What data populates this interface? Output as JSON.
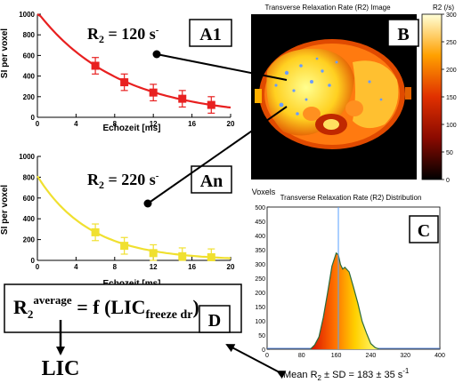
{
  "panel_a1": {
    "letter": "A1",
    "r2_label": "R",
    "r2_sub": "2",
    "r2_value": " = 120 s",
    "r2_sup": "-",
    "xlabel": "Echozeit [ms]",
    "ylabel": "SI per voxel",
    "x_ticks": [
      "0",
      "4",
      "8",
      "12",
      "16",
      "20"
    ],
    "y_ticks": [
      "0",
      "200",
      "400",
      "600",
      "800",
      "1000"
    ],
    "color": "#e82020"
  },
  "panel_an": {
    "letter": "An",
    "r2_label": "R",
    "r2_sub": "2",
    "r2_value": " = 220 s",
    "r2_sup": "-",
    "xlabel": "Echozeit [ms]",
    "ylabel": "SI per voxel",
    "x_ticks": [
      "0",
      "4",
      "8",
      "12",
      "16",
      "20"
    ],
    "y_ticks": [
      "0",
      "200",
      "400",
      "600",
      "800",
      "1000"
    ],
    "color": "#f0e030"
  },
  "panel_b": {
    "letter": "B",
    "title": "Transverse Relaxation Rate (R2) Image",
    "colorbar_title": "R2 (/s)",
    "colorbar_ticks": [
      "300",
      "250",
      "200",
      "150",
      "100",
      "50",
      "0"
    ]
  },
  "panel_c": {
    "letter": "C",
    "title": "Transverse Relaxation Rate (R2) Distribution",
    "ylabel": "Voxels",
    "y_ticks": [
      "0",
      "50",
      "100",
      "150",
      "200",
      "250",
      "300",
      "350",
      "400",
      "450",
      "500"
    ],
    "x_ticks": [
      "0",
      "80",
      "160",
      "240",
      "320",
      "400"
    ],
    "mean_text": "Mean R",
    "mean_sub": "2",
    "mean_value": " ± SD = 183 ± 35 s",
    "mean_sup": "-1"
  },
  "panel_d": {
    "letter": "D",
    "lhs": "R",
    "lhs_sub": "2",
    "lhs_sup": "average",
    "rhs": " = f (LIC",
    "rhs_sub": "freeze dr",
    "rhs_close": ")",
    "result": "LIC"
  },
  "chart_data": [
    {
      "type": "scatter",
      "series": [
        {
          "x": [
            6,
            9,
            12,
            15,
            18
          ],
          "y": [
            500,
            340,
            240,
            180,
            120
          ]
        }
      ],
      "error_bars": [
        80,
        80,
        80,
        80,
        80
      ],
      "fit": "mono-exponential decay",
      "xlim": [
        0,
        20
      ],
      "ylim": [
        0,
        1000
      ],
      "xlabel": "Echozeit [ms]",
      "ylabel": "SI per voxel"
    },
    {
      "type": "scatter",
      "series": [
        {
          "x": [
            6,
            9,
            12,
            15,
            18
          ],
          "y": [
            270,
            140,
            70,
            40,
            30
          ]
        }
      ],
      "error_bars": [
        80,
        80,
        80,
        80,
        80
      ],
      "fit": "mono-exponential decay",
      "xlim": [
        0,
        20
      ],
      "ylim": [
        0,
        1000
      ],
      "xlabel": "Echozeit [ms]",
      "ylabel": "SI per voxel"
    },
    {
      "type": "area",
      "title": "Transverse Relaxation Rate (R2) Distribution",
      "ylabel": "Voxels",
      "xlim": [
        0,
        400
      ],
      "ylim": [
        0,
        500
      ],
      "x": [
        100,
        110,
        120,
        130,
        140,
        150,
        160,
        165,
        170,
        175,
        180,
        190,
        200,
        210,
        220,
        230,
        240,
        250,
        260
      ],
      "y": [
        0,
        15,
        45,
        110,
        200,
        290,
        340,
        330,
        300,
        280,
        290,
        270,
        220,
        160,
        100,
        55,
        20,
        6,
        0
      ],
      "marker_x": 165
    }
  ]
}
